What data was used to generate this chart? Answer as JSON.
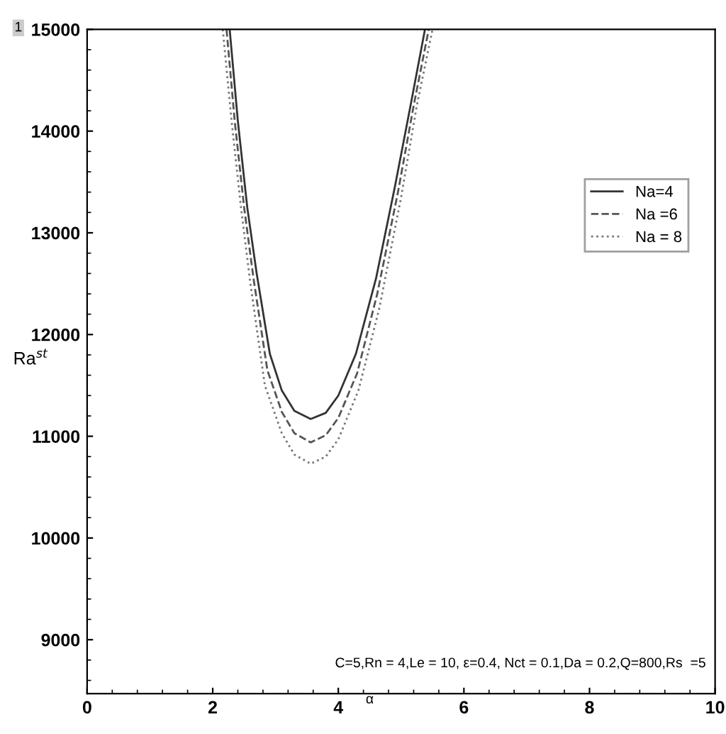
{
  "chart_data": {
    "type": "line",
    "xlabel": "α",
    "ylabel": "Ra$^{st}$",
    "xlim": [
      0,
      10
    ],
    "xticks": [
      0,
      2,
      4,
      6,
      8,
      10
    ],
    "ylim": [
      8470,
      15000
    ],
    "yticks": [
      9000,
      10000,
      11000,
      12000,
      13000,
      14000,
      15000
    ],
    "grid": false,
    "legend": "right",
    "marker": "none",
    "annotations": [
      "1",
      "C=5,Rn = 4,Le = 10, ε=0.4, Nct = 0.1,Da = 0.2,Q=800,Rs  =5"
    ],
    "series": [
      {
        "name": "Na=4",
        "color": "#333333",
        "line_style": "solid",
        "x": [
          2.27,
          2.4,
          2.55,
          2.7,
          2.91,
          3.1,
          3.3,
          3.56,
          3.8,
          4.0,
          4.28,
          4.6,
          4.9,
          5.15,
          5.38
        ],
        "values": [
          15000,
          14100,
          13250,
          12600,
          11810,
          11450,
          11250,
          11170,
          11230,
          11400,
          11810,
          12550,
          13450,
          14250,
          15000
        ]
      },
      {
        "name": "Na =6",
        "color": "#555555",
        "line_style": "dashed",
        "x": [
          2.22,
          2.35,
          2.5,
          2.65,
          2.87,
          3.1,
          3.3,
          3.56,
          3.8,
          4.0,
          4.3,
          4.62,
          4.95,
          5.2,
          5.44
        ],
        "values": [
          15000,
          14100,
          13250,
          12550,
          11650,
          11240,
          11030,
          10940,
          11010,
          11180,
          11620,
          12400,
          13400,
          14250,
          15000
        ]
      },
      {
        "name": "Na = 8",
        "color": "#777777",
        "line_style": "dotted",
        "x": [
          2.16,
          2.3,
          2.45,
          2.6,
          2.83,
          3.1,
          3.3,
          3.56,
          3.8,
          4.0,
          4.32,
          4.65,
          5.0,
          5.25,
          5.5
        ],
        "values": [
          15000,
          14100,
          13250,
          12500,
          11500,
          11030,
          10820,
          10730,
          10800,
          10970,
          11450,
          12250,
          13350,
          14250,
          15000
        ]
      }
    ]
  }
}
